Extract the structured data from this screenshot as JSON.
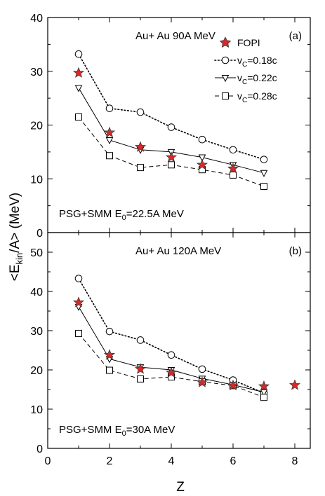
{
  "figure": {
    "ylabel_parts": [
      "<E",
      "kin",
      "/A> (MeV)"
    ],
    "xlabel": "Z"
  },
  "legend": {
    "fopi": "FOPI",
    "series_prefix": "v",
    "series_sub": "C",
    "v018": "=0.18c",
    "v022": "=0.22c",
    "v028": "=0.28c"
  },
  "chart_data": [
    {
      "type": "line",
      "panel_label": "(a)",
      "title": "Au+ Au  90A MeV",
      "annotation_prefix": "PSG+SMM E",
      "annotation_sub": "0",
      "annotation_suffix": "=22.5A MeV",
      "xlim": [
        0,
        8.5
      ],
      "ylim": [
        0,
        40
      ],
      "xticks": [
        0,
        2,
        4,
        6,
        8
      ],
      "yticks": [
        0,
        10,
        20,
        30,
        40
      ],
      "ytick_labels": [
        "0",
        "10",
        "20",
        "30",
        "40"
      ],
      "series": [
        {
          "key": "fopi",
          "marker": "star",
          "color": "#d42a2a",
          "x": [
            1,
            2,
            3,
            4,
            5,
            6
          ],
          "y": [
            29.7,
            18.6,
            15.9,
            14.0,
            12.6,
            11.9
          ]
        },
        {
          "key": "v018",
          "marker": "circle",
          "dash": "dotted",
          "x": [
            1,
            2,
            3,
            4,
            5,
            6,
            7
          ],
          "y": [
            33.2,
            23.1,
            22.4,
            19.6,
            17.3,
            15.4,
            13.6
          ]
        },
        {
          "key": "v022",
          "marker": "triangle-down",
          "dash": "solid",
          "x": [
            1,
            2,
            3,
            4,
            5,
            6,
            7
          ],
          "y": [
            26.9,
            17.2,
            15.4,
            15.0,
            14.0,
            12.6,
            11.1
          ]
        },
        {
          "key": "v028",
          "marker": "square",
          "dash": "dashed",
          "x": [
            1,
            2,
            3,
            4,
            5,
            6,
            7
          ],
          "y": [
            21.5,
            14.3,
            12.1,
            12.6,
            11.7,
            10.7,
            8.6
          ]
        }
      ]
    },
    {
      "type": "line",
      "panel_label": "(b)",
      "title": "Au+ Au  120A MeV",
      "annotation_prefix": "PSG+SMM E",
      "annotation_sub": "0",
      "annotation_suffix": "=30A MeV",
      "xlim": [
        0,
        8.5
      ],
      "ylim": [
        0,
        55
      ],
      "xticks": [
        0,
        2,
        4,
        6,
        8
      ],
      "xtick_labels": [
        "0",
        "2",
        "4",
        "6",
        "8"
      ],
      "yticks": [
        0,
        10,
        20,
        30,
        40,
        50
      ],
      "ytick_labels": [
        "0",
        "10",
        "20",
        "30",
        "40",
        "50"
      ],
      "series": [
        {
          "key": "fopi",
          "marker": "star",
          "color": "#d42a2a",
          "x": [
            1,
            2,
            3,
            4,
            5,
            6,
            7,
            8
          ],
          "y": [
            37.2,
            23.8,
            20.2,
            19.3,
            16.8,
            16.0,
            15.8,
            16.1
          ]
        },
        {
          "key": "v018",
          "marker": "circle",
          "dash": "dotted",
          "x": [
            1,
            2,
            3,
            4,
            5,
            6,
            7
          ],
          "y": [
            43.3,
            29.8,
            27.6,
            23.8,
            20.2,
            17.4,
            14.1
          ]
        },
        {
          "key": "v022",
          "marker": "triangle-down",
          "dash": "solid",
          "x": [
            1,
            2,
            3,
            4,
            5,
            6,
            7
          ],
          "y": [
            36.1,
            22.8,
            20.7,
            20.0,
            17.8,
            16.2,
            14.3
          ]
        },
        {
          "key": "v028",
          "marker": "square",
          "dash": "dashed",
          "x": [
            1,
            2,
            3,
            4,
            5,
            6,
            7
          ],
          "y": [
            29.3,
            19.9,
            17.7,
            18.2,
            17.0,
            16.0,
            13.0
          ]
        }
      ]
    }
  ]
}
